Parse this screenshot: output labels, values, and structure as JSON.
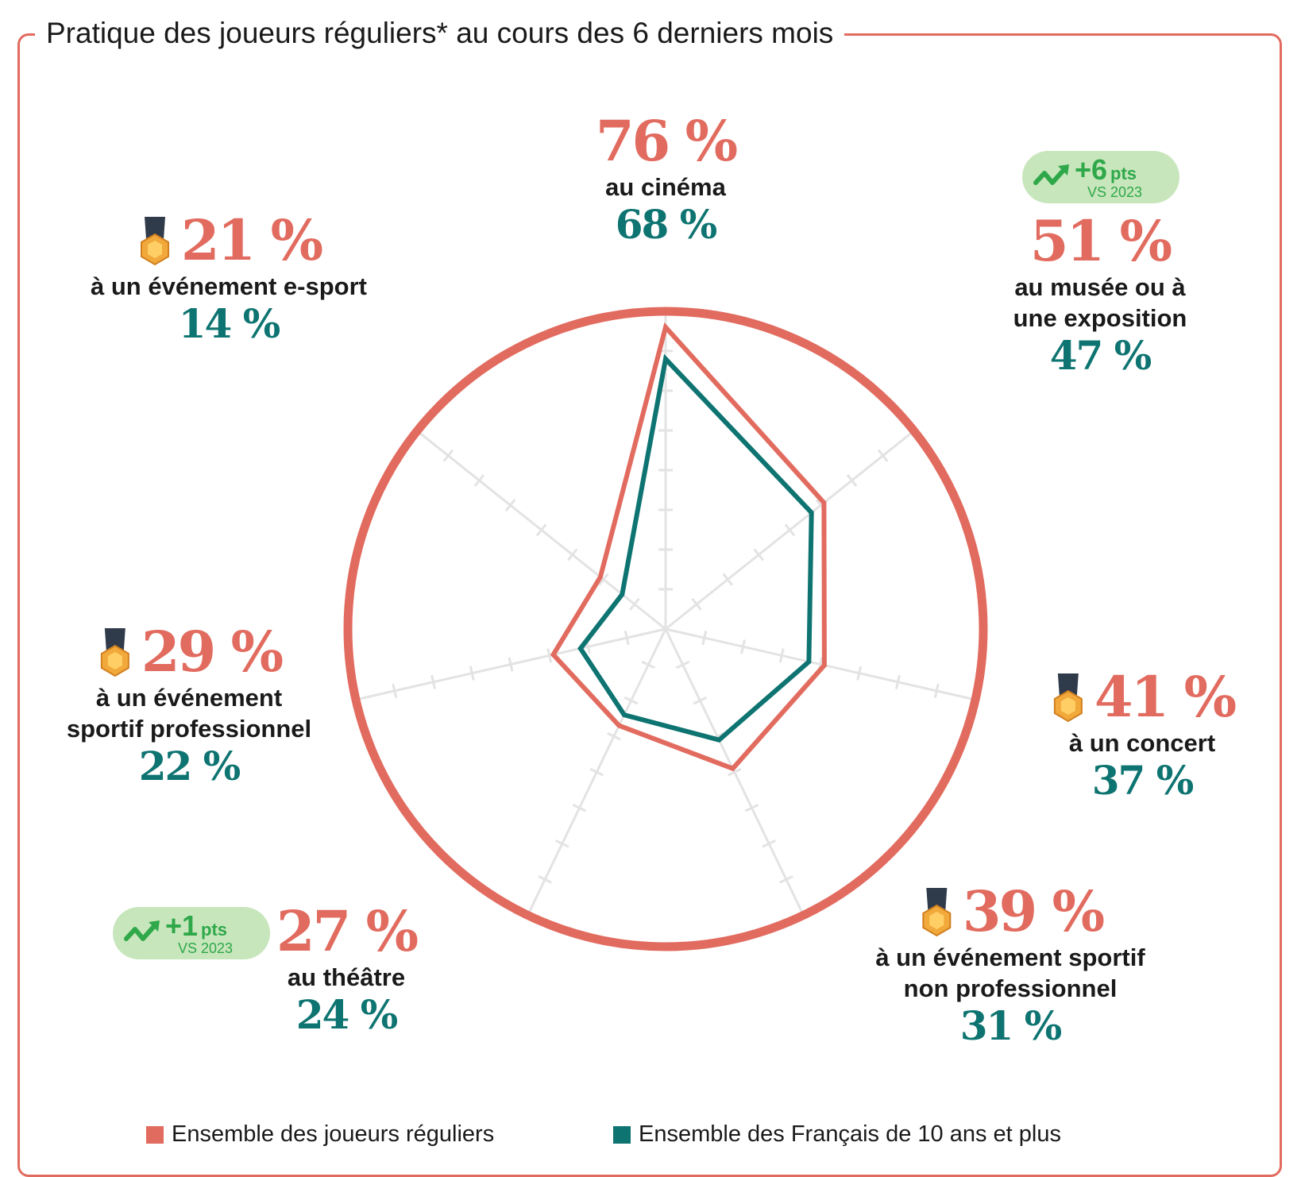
{
  "title": "Pratique des joueurs réguliers* au cours des 6 derniers mois",
  "colors": {
    "primary": "#e26b5f",
    "secondary": "#0e7471",
    "badge_bg": "#c8e6bc",
    "badge_text": "#2fa84a",
    "grid": "#e3e3e3"
  },
  "chart_data": {
    "type": "radar",
    "title": "Pratique des joueurs réguliers* au cours des 6 derniers mois",
    "categories": [
      "au cinéma",
      "au musée ou à une exposition",
      "à un concert",
      "à un événement sportif non professionnel",
      "au théâtre",
      "à un événement sportif professionnel",
      "à un événement e-sport"
    ],
    "series": [
      {
        "name": "Ensemble des joueurs réguliers",
        "color": "#e26b5f",
        "values": [
          76,
          51,
          41,
          39,
          27,
          29,
          21
        ]
      },
      {
        "name": "Ensemble des Français de 10 ans et plus",
        "color": "#0e7471",
        "values": [
          68,
          47,
          37,
          31,
          24,
          22,
          14
        ]
      }
    ],
    "rlim": [
      0,
      80
    ]
  },
  "categories": [
    {
      "label_lines": [
        "au cinéma"
      ],
      "main": "76 %",
      "sub": "68 %",
      "medal": false
    },
    {
      "label_lines": [
        "au musée ou à",
        "une exposition"
      ],
      "main": "51 %",
      "sub": "47 %",
      "medal": false
    },
    {
      "label_lines": [
        "à un concert"
      ],
      "main": "41 %",
      "sub": "37 %",
      "medal": true
    },
    {
      "label_lines": [
        "à un événement sportif",
        "non professionnel"
      ],
      "main": "39 %",
      "sub": "31 %",
      "medal": true
    },
    {
      "label_lines": [
        "au théâtre"
      ],
      "main": "27 %",
      "sub": "24 %",
      "medal": false
    },
    {
      "label_lines": [
        "à un événement",
        "sportif professionnel"
      ],
      "main": "29 %",
      "sub": "22 %",
      "medal": true
    },
    {
      "label_lines": [
        "à un événement e-sport"
      ],
      "main": "21 %",
      "sub": "14 %",
      "medal": true
    }
  ],
  "badges": [
    {
      "value": "+6",
      "unit": "pts",
      "compare": "VS 2023"
    },
    {
      "value": "+1",
      "unit": "pts",
      "compare": "VS 2023"
    }
  ],
  "legend": [
    {
      "label": "Ensemble des joueurs réguliers",
      "color": "#e26b5f"
    },
    {
      "label": "Ensemble des Français de 10 ans et plus",
      "color": "#0e7471"
    }
  ]
}
